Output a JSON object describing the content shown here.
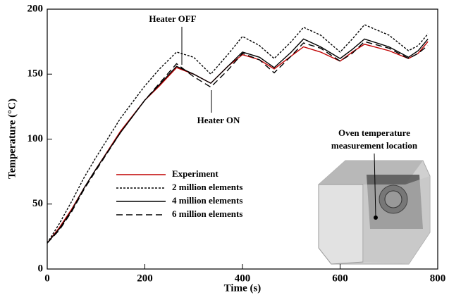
{
  "chart_data": {
    "type": "line",
    "x_label": "Time (s)",
    "y_label": "Temperature (°C)",
    "x": [
      0,
      25,
      50,
      75,
      100,
      150,
      200,
      230,
      265,
      300,
      335,
      370,
      400,
      435,
      465,
      500,
      525,
      560,
      600,
      625,
      650,
      700,
      740,
      760,
      780
    ],
    "series": [
      {
        "name": "Experiment",
        "color": "#c00000",
        "dash": "solid",
        "values": [
          20,
          32,
          46,
          62,
          77,
          106,
          130,
          141,
          155,
          150,
          143,
          156,
          165,
          161,
          154,
          164,
          171,
          167,
          160,
          167,
          173,
          168,
          162,
          166,
          175
        ]
      },
      {
        "name": "2 million elements",
        "color": "#000000",
        "dash": "dotted",
        "values": [
          20,
          35,
          52,
          70,
          86,
          116,
          141,
          154,
          167,
          163,
          150,
          165,
          179,
          172,
          162,
          175,
          186,
          180,
          167,
          177,
          188,
          180,
          168,
          172,
          181
        ]
      },
      {
        "name": "4 million elements",
        "color": "#000000",
        "dash": "solid",
        "values": [
          20,
          31,
          45,
          62,
          77,
          105,
          130,
          142,
          156,
          150,
          143,
          156,
          167,
          163,
          155,
          167,
          177,
          171,
          162,
          169,
          177,
          171,
          163,
          168,
          177
        ]
      },
      {
        "name": "6 million elements",
        "color": "#000000",
        "dash": "dashed",
        "values": [
          20,
          30,
          44,
          61,
          76,
          105,
          130,
          143,
          158,
          148,
          140,
          153,
          166,
          161,
          151,
          164,
          174,
          170,
          160,
          166,
          175,
          170,
          162,
          166,
          172
        ]
      }
    ],
    "xlim": [
      0,
      800
    ],
    "xticks": [
      0,
      200,
      400,
      600,
      800
    ],
    "ylim": [
      0,
      200
    ],
    "yticks": [
      0,
      50,
      100,
      150,
      200
    ],
    "annotations": [
      "Heater OFF",
      "Heater ON",
      "Oven temperature",
      "measurement location"
    ]
  }
}
